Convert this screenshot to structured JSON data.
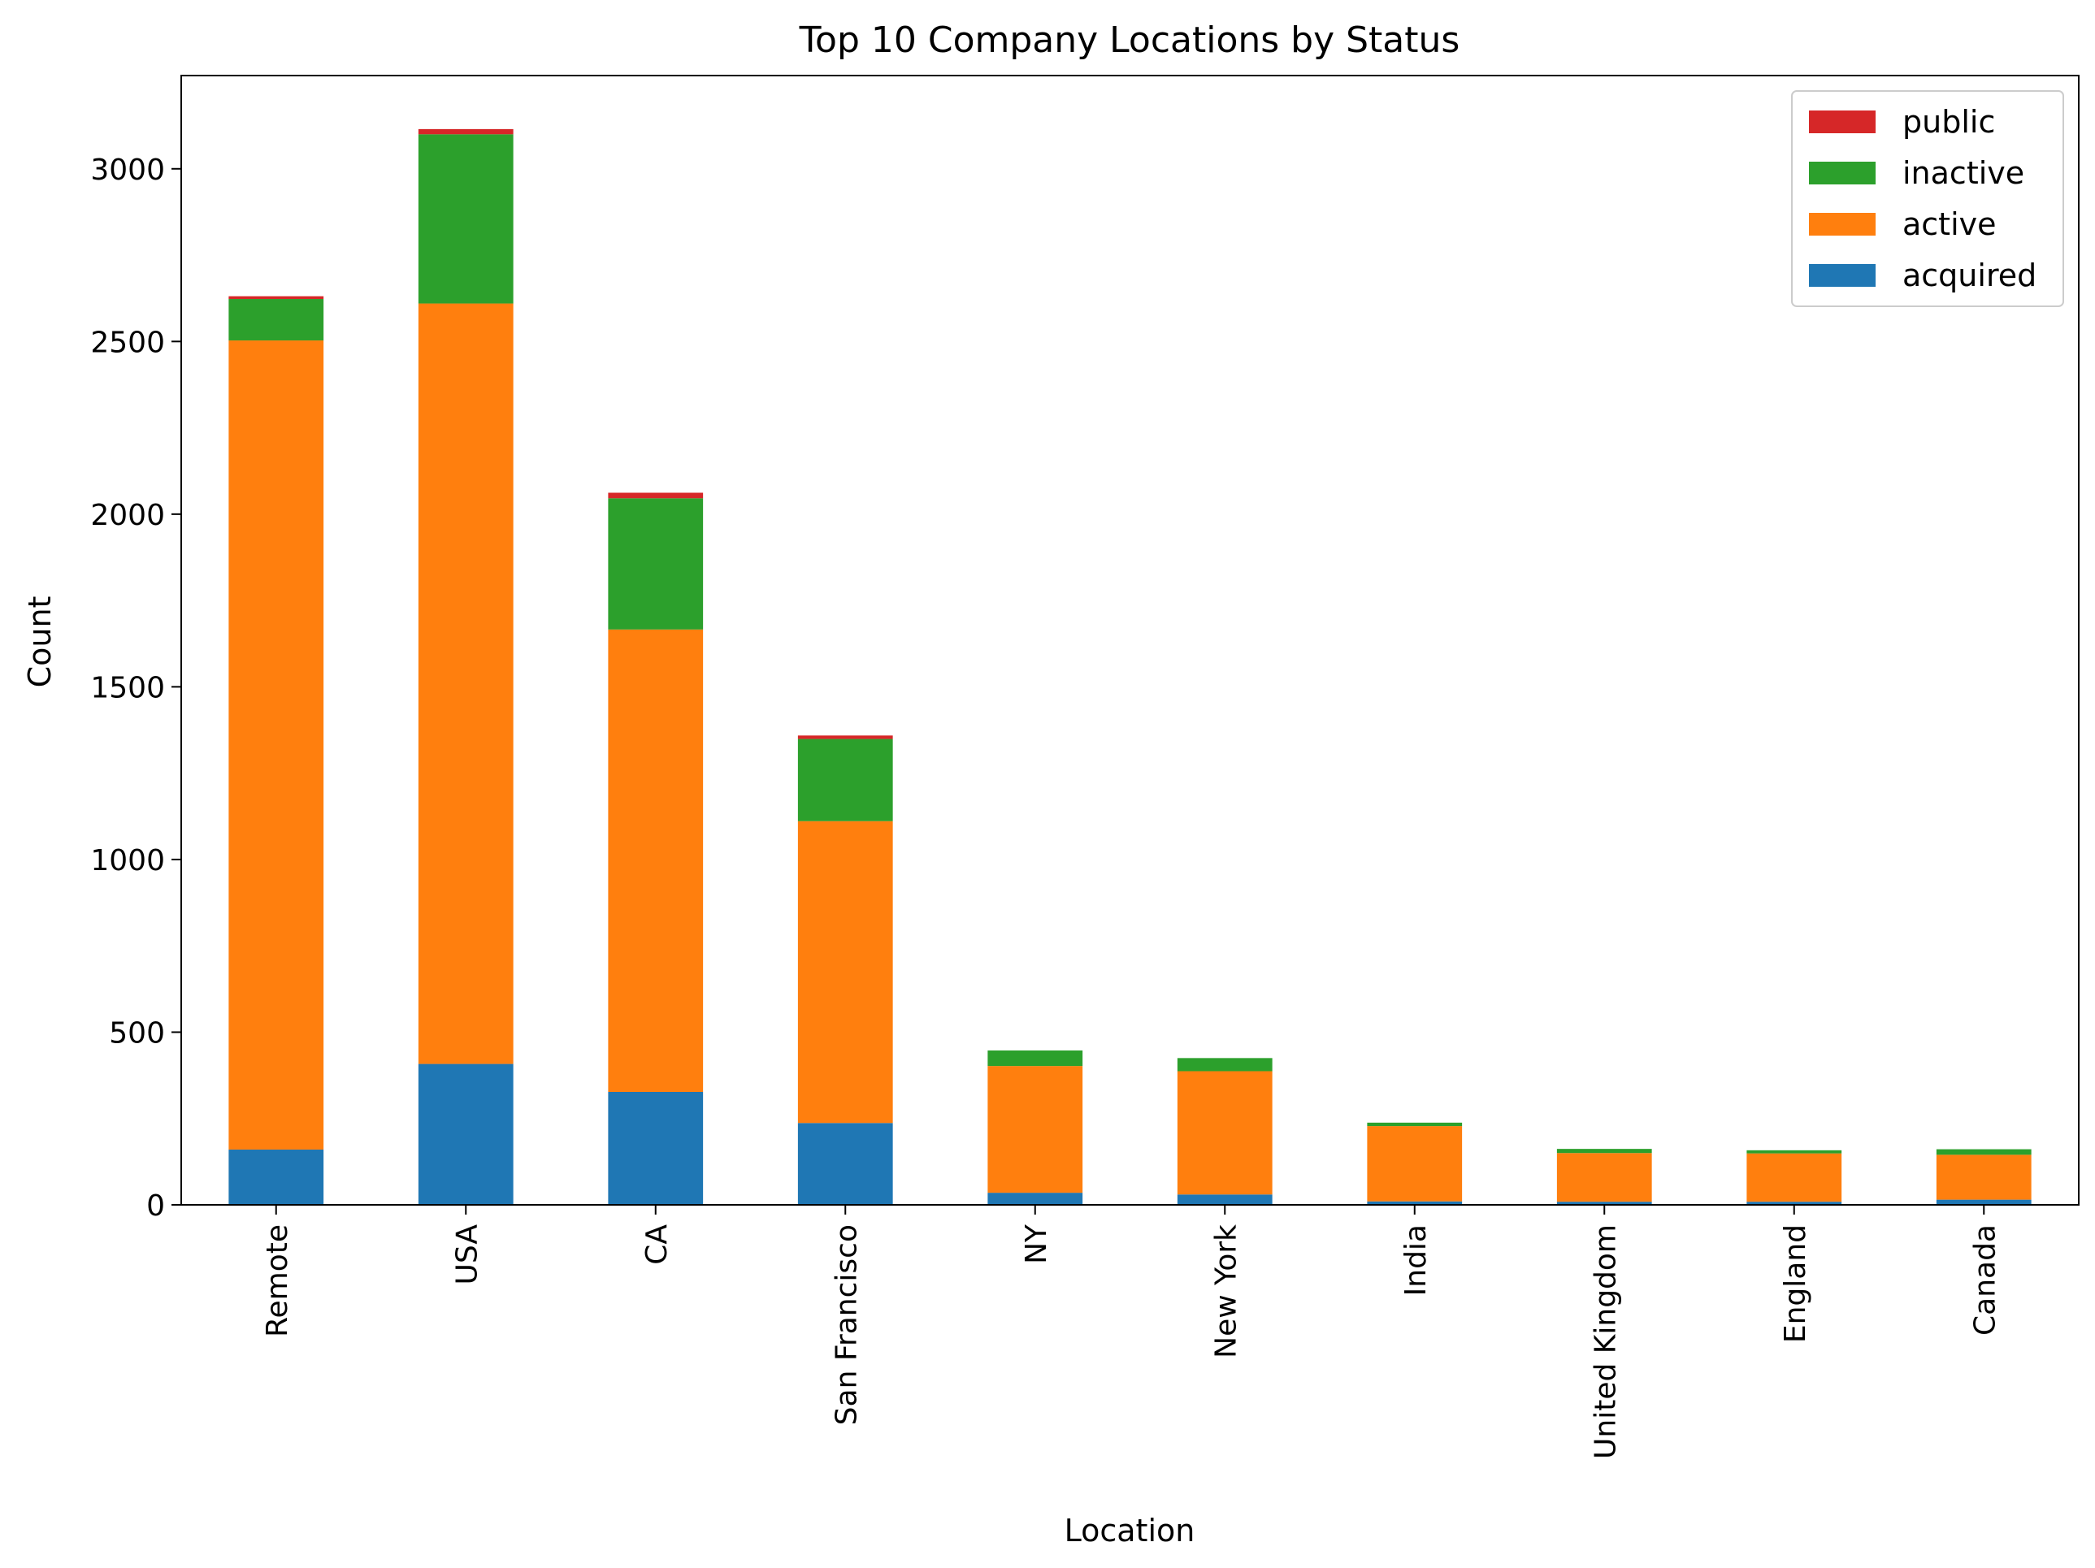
{
  "chart_data": {
    "type": "bar",
    "stacked": true,
    "title": "Top 10 Company Locations by Status",
    "xlabel": "Location",
    "ylabel": "Count",
    "ylim": [
      0,
      3270
    ],
    "yticks": [
      0,
      500,
      1000,
      1500,
      2000,
      2500,
      3000
    ],
    "grid": false,
    "legend_position": "top-right",
    "categories": [
      "Remote",
      "USA",
      "CA",
      "San Francisco",
      "NY",
      "New York",
      "India",
      "United Kingdom",
      "England",
      "Canada"
    ],
    "series": [
      {
        "name": "acquired",
        "color": "#1f77b4",
        "values": [
          160,
          408,
          327,
          237,
          35,
          30,
          10,
          9,
          9,
          15
        ]
      },
      {
        "name": "active",
        "color": "#ff7f0e",
        "values": [
          2343,
          2202,
          1339,
          874,
          367,
          357,
          218,
          141,
          140,
          130
        ]
      },
      {
        "name": "inactive",
        "color": "#2ca02c",
        "values": [
          120,
          490,
          380,
          238,
          45,
          38,
          10,
          12,
          9,
          16
        ]
      },
      {
        "name": "public",
        "color": "#d62728",
        "values": [
          8,
          15,
          16,
          10,
          0,
          0,
          0,
          0,
          0,
          0
        ]
      }
    ]
  }
}
